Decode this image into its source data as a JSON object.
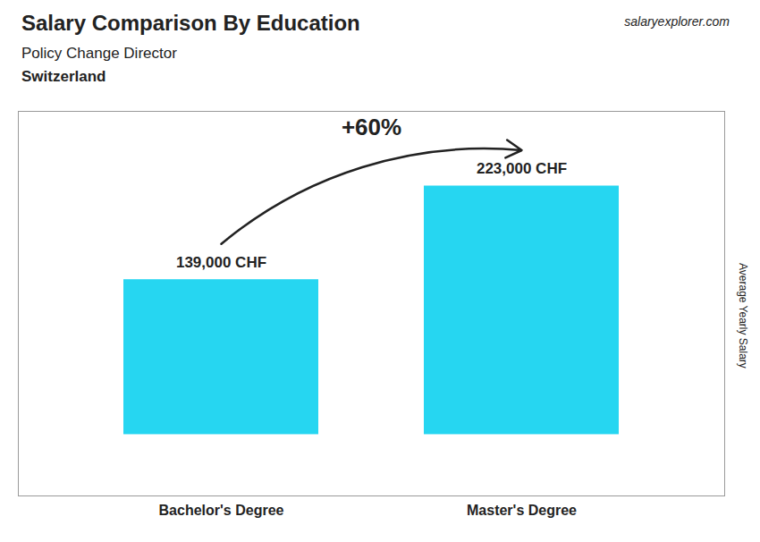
{
  "chart_data": {
    "type": "bar",
    "title": "Salary Comparison By Education",
    "subtitle": "Policy Change Director",
    "annotations": [
      "salary",
      "explorer.com",
      "Switzerland",
      "+60%"
    ],
    "ylabel": "Average Yearly Salary",
    "categories": [
      "Bachelor's Degree",
      "Master's Degree"
    ],
    "values": [
      139000,
      223000
    ],
    "value_labels": [
      "139,000 CHF",
      "223,000 CHF"
    ],
    "data_labels": true,
    "color": "#00cfee",
    "ylim": [
      -55000,
      290000
    ],
    "tick_labels": "x"
  }
}
